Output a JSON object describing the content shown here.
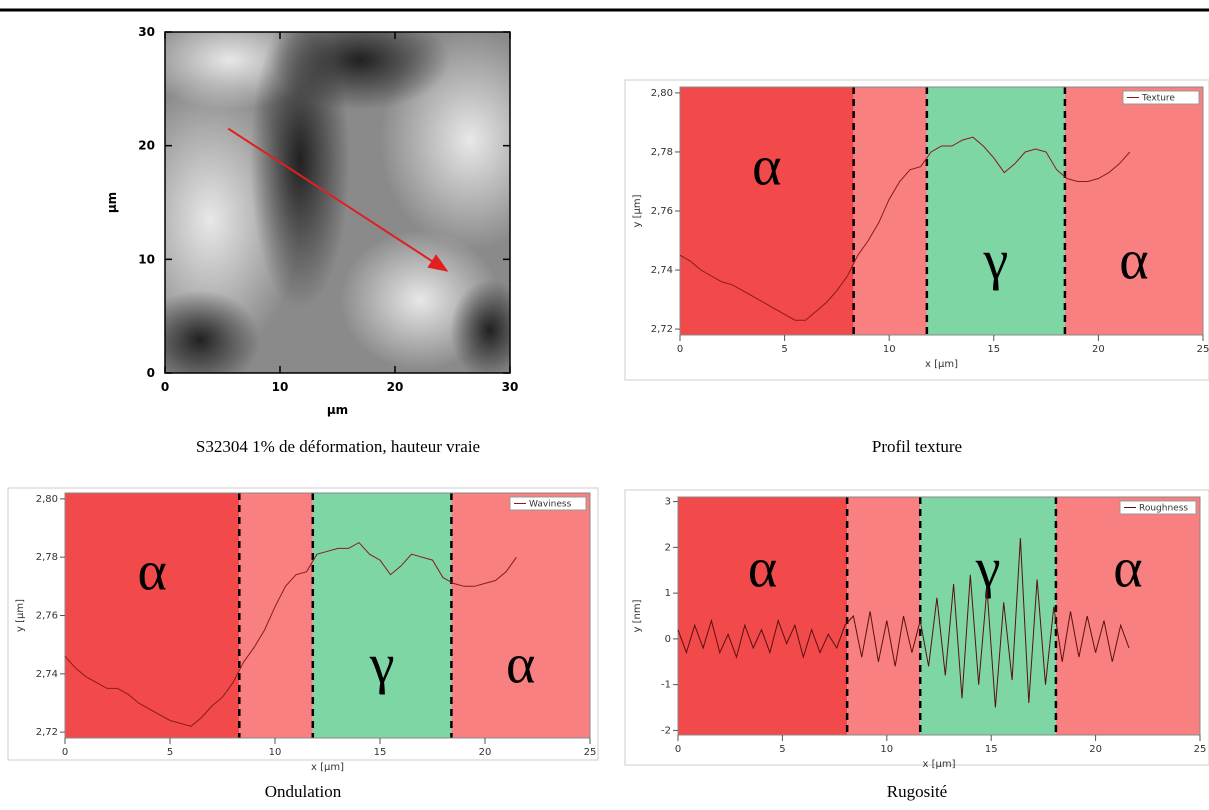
{
  "chart_data": [
    {
      "type": "image",
      "caption": "S32304 1% de déformation, hauteur vraie",
      "xlabel": "µm",
      "ylabel": "µm",
      "xlim": [
        0,
        30
      ],
      "ylim": [
        0,
        30
      ],
      "xticks": [
        0,
        10,
        20,
        30
      ],
      "yticks": [
        0,
        10,
        20,
        30
      ],
      "arrow": {
        "x": [
          5.5,
          24.5
        ],
        "y": [
          21.5,
          9
        ],
        "color": "#e02020"
      }
    },
    {
      "type": "line",
      "caption": "Profil texture",
      "xlabel": "x [µm]",
      "ylabel": "y [µm]",
      "xlim": [
        0,
        25
      ],
      "ylim": [
        2.718,
        2.802
      ],
      "xticks": [
        0,
        5,
        10,
        15,
        20,
        25
      ],
      "yticks": [
        {
          "value": 2.72,
          "label": "2,72"
        },
        {
          "value": 2.74,
          "label": "2,74"
        },
        {
          "value": 2.76,
          "label": "2,76"
        },
        {
          "value": 2.78,
          "label": "2,78"
        },
        {
          "value": 2.8,
          "label": "2,80"
        }
      ],
      "regions": [
        {
          "start": 0,
          "end": 8.3,
          "color": "#f24a4a",
          "label": "α"
        },
        {
          "start": 8.3,
          "end": 11.8,
          "color": "#f98080"
        },
        {
          "start": 11.8,
          "end": 18.4,
          "color": "#7dd6a3",
          "label": "γ"
        },
        {
          "start": 18.4,
          "end": 25,
          "color": "#f98080",
          "label": "α"
        }
      ],
      "series": [
        {
          "name": "Texture",
          "color": "#8b1a1a",
          "x": [
            0,
            0.5,
            1,
            1.5,
            2,
            2.5,
            3,
            3.5,
            4,
            4.5,
            5,
            5.5,
            6,
            6.5,
            7,
            7.5,
            8,
            8.5,
            9,
            9.5,
            10,
            10.5,
            11,
            11.5,
            12,
            12.5,
            13,
            13.5,
            14,
            14.5,
            15,
            15.5,
            16,
            16.5,
            17,
            17.5,
            18,
            18.5,
            19,
            19.5,
            20,
            20.5,
            21,
            21.5
          ],
          "values": [
            2.745,
            2.743,
            2.74,
            2.738,
            2.736,
            2.735,
            2.733,
            2.731,
            2.729,
            2.727,
            2.725,
            2.723,
            2.723,
            2.726,
            2.729,
            2.733,
            2.738,
            2.745,
            2.75,
            2.756,
            2.764,
            2.77,
            2.774,
            2.775,
            2.78,
            2.782,
            2.782,
            2.784,
            2.785,
            2.782,
            2.778,
            2.773,
            2.776,
            2.78,
            2.781,
            2.78,
            2.774,
            2.771,
            2.77,
            2.77,
            2.771,
            2.773,
            2.776,
            2.78
          ]
        }
      ]
    },
    {
      "type": "line",
      "caption": "Ondulation",
      "xlabel": "x [µm]",
      "ylabel": "y [µm]",
      "xlim": [
        0,
        25
      ],
      "ylim": [
        2.718,
        2.802
      ],
      "xticks": [
        0,
        5,
        10,
        15,
        20,
        25
      ],
      "yticks": [
        {
          "value": 2.72,
          "label": "2,72"
        },
        {
          "value": 2.74,
          "label": "2,74"
        },
        {
          "value": 2.76,
          "label": "2,76"
        },
        {
          "value": 2.78,
          "label": "2,78"
        },
        {
          "value": 2.8,
          "label": "2,80"
        }
      ],
      "regions": [
        {
          "start": 0,
          "end": 8.3,
          "color": "#f24a4a",
          "label": "α"
        },
        {
          "start": 8.3,
          "end": 11.8,
          "color": "#f98080"
        },
        {
          "start": 11.8,
          "end": 18.4,
          "color": "#7dd6a3",
          "label": "γ"
        },
        {
          "start": 18.4,
          "end": 25,
          "color": "#f98080",
          "label": "α"
        }
      ],
      "series": [
        {
          "name": "Waviness",
          "color": "#8b1a1a",
          "x": [
            0,
            0.5,
            1,
            1.5,
            2,
            2.5,
            3,
            3.5,
            4,
            4.5,
            5,
            5.5,
            6,
            6.5,
            7,
            7.5,
            8,
            8.5,
            9,
            9.5,
            10,
            10.5,
            11,
            11.5,
            12,
            12.5,
            13,
            13.5,
            14,
            14.5,
            15,
            15.5,
            16,
            16.5,
            17,
            17.5,
            18,
            18.5,
            19,
            19.5,
            20,
            20.5,
            21,
            21.5
          ],
          "values": [
            2.746,
            2.742,
            2.739,
            2.737,
            2.735,
            2.735,
            2.733,
            2.73,
            2.728,
            2.726,
            2.724,
            2.723,
            2.722,
            2.725,
            2.729,
            2.732,
            2.737,
            2.744,
            2.749,
            2.755,
            2.763,
            2.77,
            2.774,
            2.775,
            2.781,
            2.782,
            2.783,
            2.783,
            2.785,
            2.781,
            2.779,
            2.774,
            2.777,
            2.781,
            2.78,
            2.779,
            2.773,
            2.771,
            2.77,
            2.77,
            2.771,
            2.772,
            2.775,
            2.78
          ]
        }
      ]
    },
    {
      "type": "line",
      "caption": "Rugosité",
      "xlabel": "x [µm]",
      "ylabel": "y [nm]",
      "xlim": [
        0,
        25
      ],
      "ylim": [
        -2.1,
        3.1
      ],
      "xticks": [
        0,
        5,
        10,
        15,
        20,
        25
      ],
      "yticks": [
        -2,
        -1,
        0,
        1,
        2,
        3
      ],
      "regions": [
        {
          "start": 0,
          "end": 8.1,
          "color": "#f24a4a",
          "label": "α"
        },
        {
          "start": 8.1,
          "end": 11.6,
          "color": "#f98080"
        },
        {
          "start": 11.6,
          "end": 18.1,
          "color": "#7dd6a3",
          "label": "γ"
        },
        {
          "start": 18.1,
          "end": 25,
          "color": "#f98080",
          "label": "α"
        }
      ],
      "series": [
        {
          "name": "Roughness",
          "color": "#5a1010",
          "x": [
            0,
            0.4,
            0.8,
            1.2,
            1.6,
            2,
            2.4,
            2.8,
            3.2,
            3.6,
            4,
            4.4,
            4.8,
            5.2,
            5.6,
            6,
            6.4,
            6.8,
            7.2,
            7.6,
            8,
            8.4,
            8.8,
            9.2,
            9.6,
            10,
            10.4,
            10.8,
            11.2,
            11.6,
            12,
            12.4,
            12.8,
            13.2,
            13.6,
            14,
            14.4,
            14.8,
            15.2,
            15.6,
            16,
            16.4,
            16.8,
            17.2,
            17.6,
            18,
            18.4,
            18.8,
            19.2,
            19.6,
            20,
            20.4,
            20.8,
            21.2,
            21.6
          ],
          "values": [
            0.2,
            -0.3,
            0.3,
            -0.2,
            0.4,
            -0.3,
            0.1,
            -0.4,
            0.3,
            -0.2,
            0.2,
            -0.3,
            0.4,
            -0.1,
            0.3,
            -0.4,
            0.2,
            -0.3,
            0.1,
            -0.2,
            0.3,
            0.5,
            -0.4,
            0.6,
            -0.5,
            0.4,
            -0.6,
            0.5,
            -0.3,
            0.4,
            -0.6,
            0.9,
            -0.8,
            1.2,
            -1.3,
            1.4,
            -1.0,
            1.1,
            -1.5,
            0.8,
            -0.9,
            2.2,
            -1.4,
            1.3,
            -1.0,
            0.7,
            -0.5,
            0.6,
            -0.4,
            0.5,
            -0.3,
            0.4,
            -0.5,
            0.3,
            -0.2
          ]
        }
      ]
    }
  ]
}
